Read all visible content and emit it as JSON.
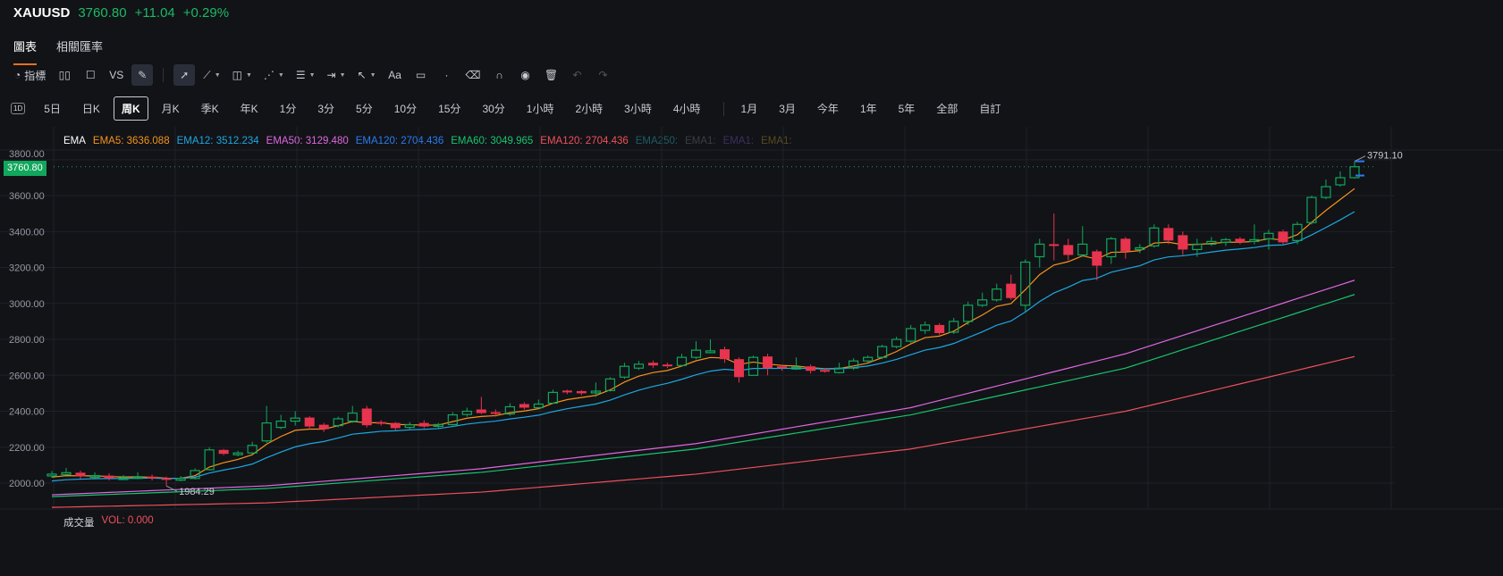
{
  "header": {
    "symbol": "XAUUSD",
    "price": "3760.80",
    "change": "+11.04",
    "change_pct": "+0.29%"
  },
  "tabs": [
    {
      "label": "圖表"
    },
    {
      "label": "相關匯率"
    }
  ],
  "toolbar": {
    "indicators_label": "指標",
    "vs_label": "VS"
  },
  "intervals": [
    "5日",
    "日K",
    "周K",
    "月K",
    "季K",
    "年K",
    "1分",
    "3分",
    "5分",
    "10分",
    "15分",
    "30分",
    "1小時",
    "2小時",
    "3小時",
    "4小時"
  ],
  "ranges": [
    "1月",
    "3月",
    "今年",
    "1年",
    "5年",
    "全部",
    "自訂"
  ],
  "interval_badge": "1D",
  "legend": {
    "title": "EMA",
    "items": [
      {
        "label": "EMA5: 3636.088",
        "color": "#f7931a"
      },
      {
        "label": "EMA12: 3512.234",
        "color": "#1ea7e1"
      },
      {
        "label": "EMA50: 3129.480",
        "color": "#e066e0"
      },
      {
        "label": "EMA120: 2704.436",
        "color": "#2b7bf0"
      },
      {
        "label": "EMA60: 3049.965",
        "color": "#19c46e"
      },
      {
        "label": "EMA120: 2704.436",
        "color": "#f0505a"
      },
      {
        "label": "EMA250:",
        "color": "#1f5c63"
      },
      {
        "label": "EMA1:",
        "color": "#3a3d44"
      },
      {
        "label": "EMA1:",
        "color": "#3c3060"
      },
      {
        "label": "EMA1:",
        "color": "#5a4a1e"
      }
    ]
  },
  "volume": {
    "label": "成交量",
    "value": "VOL: 0.000"
  },
  "last_price_badge": "3760.80",
  "colors": {
    "up": "#11a75c",
    "down": "#e8344e",
    "bg": "#111317"
  },
  "chart_data": {
    "type": "candlestick",
    "yticks": [
      "2000.00",
      "2200.00",
      "2400.00",
      "2600.00",
      "2800.00",
      "3000.00",
      "3200.00",
      "3400.00",
      "3600.00",
      "3800.00"
    ],
    "ylim": [
      1840,
      3900
    ],
    "max_label": "3791.10",
    "min_label": "1984.29",
    "max_index": 91,
    "min_index": 8,
    "candles": [
      [
        2040,
        2068,
        2030,
        2050
      ],
      [
        2050,
        2085,
        2045,
        2058
      ],
      [
        2058,
        2070,
        2025,
        2038
      ],
      [
        2038,
        2060,
        2020,
        2042
      ],
      [
        2042,
        2055,
        2015,
        2027
      ],
      [
        2027,
        2045,
        2018,
        2030
      ],
      [
        2030,
        2060,
        2022,
        2036
      ],
      [
        2036,
        2048,
        2015,
        2028
      ],
      [
        2028,
        2036,
        1984.29,
        2018
      ],
      [
        2018,
        2040,
        2010,
        2026
      ],
      [
        2026,
        2082,
        2020,
        2070
      ],
      [
        2075,
        2200,
        2070,
        2185
      ],
      [
        2185,
        2190,
        2155,
        2163
      ],
      [
        2163,
        2180,
        2150,
        2168
      ],
      [
        2168,
        2230,
        2160,
        2210
      ],
      [
        2235,
        2430,
        2225,
        2335
      ],
      [
        2310,
        2380,
        2300,
        2345
      ],
      [
        2345,
        2400,
        2320,
        2362
      ],
      [
        2365,
        2372,
        2300,
        2315
      ],
      [
        2325,
        2335,
        2285,
        2300
      ],
      [
        2320,
        2370,
        2310,
        2358
      ],
      [
        2345,
        2430,
        2335,
        2390
      ],
      [
        2415,
        2430,
        2310,
        2322
      ],
      [
        2340,
        2350,
        2320,
        2336
      ],
      [
        2335,
        2340,
        2295,
        2306
      ],
      [
        2310,
        2340,
        2300,
        2325
      ],
      [
        2335,
        2350,
        2305,
        2315
      ],
      [
        2318,
        2335,
        2305,
        2326
      ],
      [
        2326,
        2395,
        2320,
        2380
      ],
      [
        2382,
        2420,
        2370,
        2400
      ],
      [
        2410,
        2480,
        2385,
        2390
      ],
      [
        2395,
        2410,
        2370,
        2385
      ],
      [
        2385,
        2445,
        2375,
        2425
      ],
      [
        2440,
        2450,
        2410,
        2420
      ],
      [
        2420,
        2465,
        2415,
        2440
      ],
      [
        2445,
        2520,
        2440,
        2505
      ],
      [
        2515,
        2520,
        2495,
        2505
      ],
      [
        2512,
        2518,
        2490,
        2500
      ],
      [
        2510,
        2560,
        2480,
        2512
      ],
      [
        2515,
        2590,
        2510,
        2580
      ],
      [
        2590,
        2670,
        2580,
        2650
      ],
      [
        2640,
        2680,
        2630,
        2662
      ],
      [
        2670,
        2682,
        2640,
        2655
      ],
      [
        2660,
        2670,
        2640,
        2650
      ],
      [
        2655,
        2720,
        2650,
        2700
      ],
      [
        2700,
        2790,
        2690,
        2740
      ],
      [
        2730,
        2800,
        2725,
        2736
      ],
      [
        2745,
        2760,
        2670,
        2690
      ],
      [
        2690,
        2700,
        2560,
        2590
      ],
      [
        2600,
        2710,
        2600,
        2700
      ],
      [
        2705,
        2720,
        2600,
        2640
      ],
      [
        2650,
        2660,
        2625,
        2640
      ],
      [
        2640,
        2700,
        2630,
        2645
      ],
      [
        2650,
        2660,
        2610,
        2625
      ],
      [
        2630,
        2640,
        2615,
        2625
      ],
      [
        2615,
        2670,
        2610,
        2640
      ],
      [
        2640,
        2695,
        2630,
        2680
      ],
      [
        2680,
        2710,
        2670,
        2700
      ],
      [
        2700,
        2770,
        2690,
        2760
      ],
      [
        2760,
        2815,
        2750,
        2800
      ],
      [
        2790,
        2880,
        2780,
        2860
      ],
      [
        2850,
        2900,
        2830,
        2880
      ],
      [
        2880,
        2890,
        2825,
        2835
      ],
      [
        2840,
        2920,
        2830,
        2900
      ],
      [
        2900,
        3010,
        2880,
        2990
      ],
      [
        2990,
        3060,
        2980,
        3020
      ],
      [
        3020,
        3110,
        3010,
        3080
      ],
      [
        3110,
        3160,
        3020,
        3030
      ],
      [
        2990,
        3245,
        2950,
        3230
      ],
      [
        3260,
        3360,
        3200,
        3330
      ],
      [
        3330,
        3500,
        3240,
        3320
      ],
      [
        3325,
        3360,
        3240,
        3270
      ],
      [
        3270,
        3430,
        3260,
        3330
      ],
      [
        3290,
        3300,
        3130,
        3210
      ],
      [
        3260,
        3370,
        3220,
        3360
      ],
      [
        3360,
        3370,
        3250,
        3290
      ],
      [
        3300,
        3330,
        3280,
        3310
      ],
      [
        3320,
        3440,
        3310,
        3420
      ],
      [
        3420,
        3440,
        3330,
        3350
      ],
      [
        3380,
        3400,
        3270,
        3300
      ],
      [
        3300,
        3360,
        3260,
        3330
      ],
      [
        3330,
        3370,
        3320,
        3345
      ],
      [
        3340,
        3365,
        3320,
        3355
      ],
      [
        3360,
        3370,
        3330,
        3340
      ],
      [
        3345,
        3440,
        3330,
        3355
      ],
      [
        3360,
        3410,
        3300,
        3390
      ],
      [
        3400,
        3410,
        3330,
        3340
      ],
      [
        3350,
        3455,
        3330,
        3440
      ],
      [
        3450,
        3600,
        3440,
        3590
      ],
      [
        3590,
        3690,
        3580,
        3650
      ],
      [
        3660,
        3735,
        3650,
        3700
      ],
      [
        3700,
        3791.1,
        3695,
        3760.8
      ]
    ],
    "ema_long": [
      {
        "name": "EMA50",
        "color": "#e066e0",
        "at": [
          0,
          15,
          30,
          45,
          60,
          75,
          91
        ],
        "values": [
          1935,
          1985,
          2080,
          2220,
          2420,
          2720,
          3129.48
        ]
      },
      {
        "name": "EMA60",
        "color": "#19c46e",
        "at": [
          0,
          15,
          30,
          45,
          60,
          75,
          91
        ],
        "values": [
          1925,
          1970,
          2060,
          2190,
          2380,
          2640,
          3049.965
        ]
      },
      {
        "name": "EMA120",
        "color": "#f0505a",
        "at": [
          0,
          15,
          30,
          45,
          60,
          75,
          91
        ],
        "values": [
          1865,
          1890,
          1950,
          2050,
          2190,
          2400,
          2704.436
        ]
      }
    ],
    "ema_short": [
      {
        "name": "EMA5",
        "period": 5,
        "seed": 2025,
        "color": "#f7931a"
      },
      {
        "name": "EMA12",
        "period": 12,
        "seed": 2005,
        "color": "#1ea7e1"
      }
    ]
  }
}
